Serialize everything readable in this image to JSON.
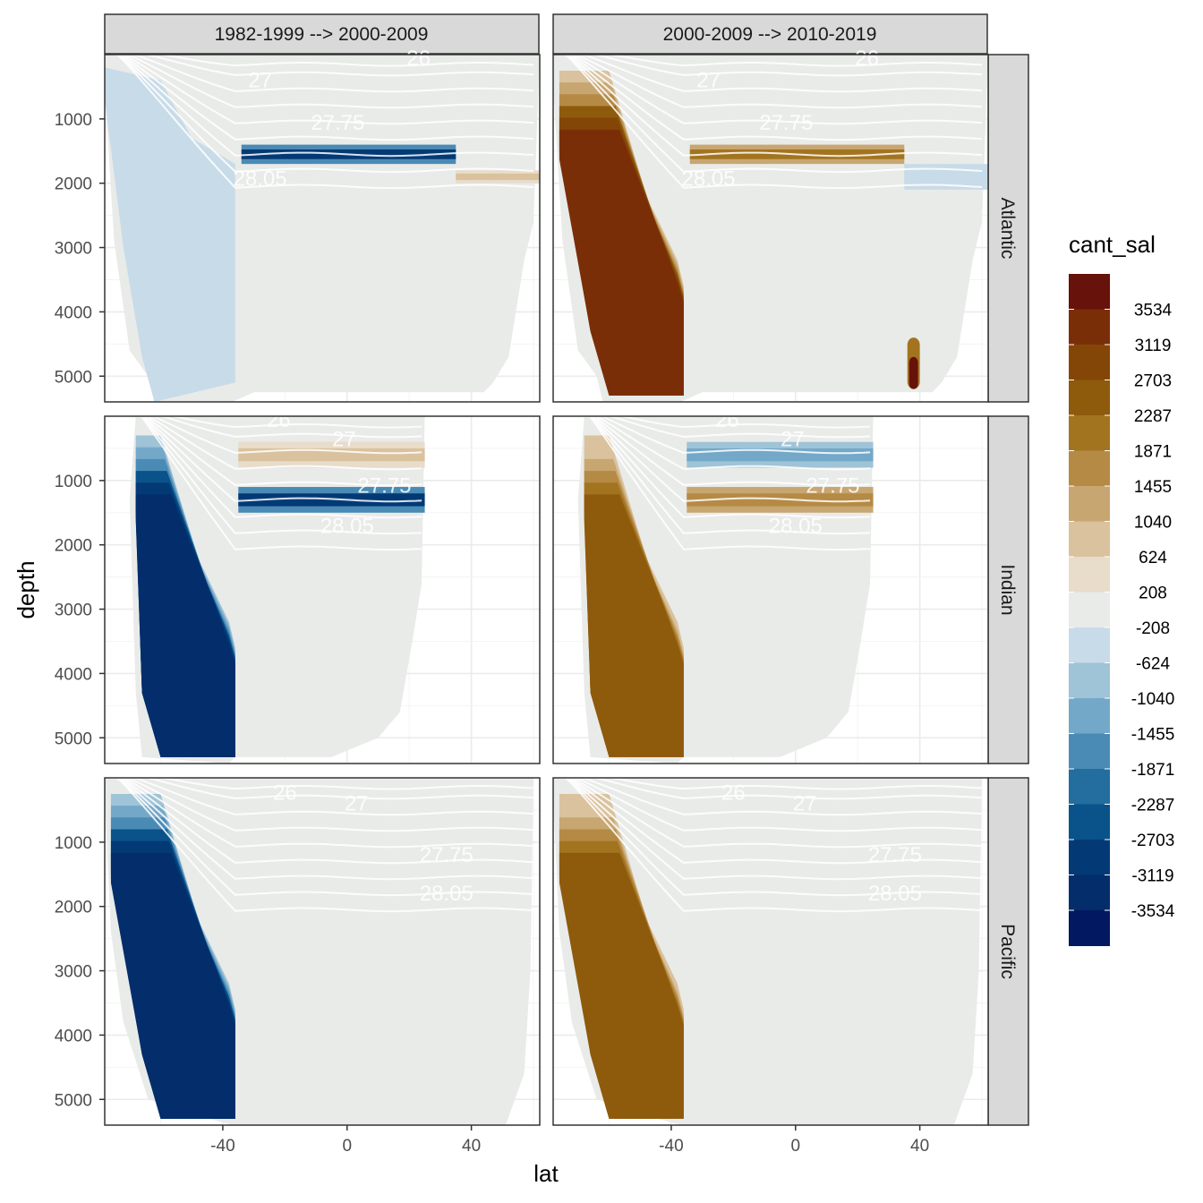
{
  "chart_data": {
    "type": "heatmap",
    "facet_columns": [
      "1982-1999 --> 2000-2009",
      "2000-2009 --> 2010-2019"
    ],
    "facet_rows": [
      "Atlantic",
      "Indian",
      "Pacific"
    ],
    "xlabel": "lat",
    "ylabel": "depth",
    "x_ticks": [
      -40,
      0,
      40
    ],
    "y_ticks": [
      1000,
      2000,
      3000,
      4000,
      5000
    ],
    "xlim": [
      -78,
      62
    ],
    "ylim": [
      5400,
      0
    ],
    "y_reversed": true,
    "grid": true,
    "legend": {
      "title": "cant_sal",
      "position": "right",
      "breaks": [
        3534,
        3119,
        2703,
        2287,
        1871,
        1455,
        1040,
        624,
        208,
        -208,
        -624,
        -1040,
        -1455,
        -1871,
        -2287,
        -2703,
        -3119,
        -3534
      ],
      "colors": [
        "#67120a",
        "#7a2e08",
        "#844606",
        "#8e5a0c",
        "#a3741f",
        "#b58a45",
        "#c8a671",
        "#d9c29d",
        "#e8dcca",
        "#e9ebe9",
        "#c8dbe8",
        "#9fc3d7",
        "#74a8c8",
        "#4a8bb6",
        "#236d9f",
        "#0a528a",
        "#033a76",
        "#032d6b",
        "#021860"
      ]
    },
    "isopycnal_labels": [
      "26",
      "27",
      "27.75",
      "28.05"
    ],
    "series": [
      {
        "period": "1982-1999 --> 2000-2009",
        "basin": "Atlantic",
        "features": [
          {
            "lat": [
              -78,
              -36
            ],
            "depth": [
              0,
              5400
            ],
            "value": -500
          },
          {
            "lat": [
              -34,
              35
            ],
            "depth": [
              1400,
              1700
            ],
            "value": -2800
          },
          {
            "lat": [
              35,
              62
            ],
            "depth": [
              1800,
              2000
            ],
            "value": 900
          }
        ]
      },
      {
        "period": "1982-1999 --> 2000-2009",
        "basin": "Indian",
        "features": [
          {
            "lat": [
              -68,
              -36
            ],
            "depth": [
              1300,
              5200
            ],
            "value": -3700
          },
          {
            "lat": [
              -35,
              25
            ],
            "depth": [
              400,
              800
            ],
            "value": 1000
          },
          {
            "lat": [
              -35,
              25
            ],
            "depth": [
              1100,
              1500
            ],
            "value": -2800
          }
        ]
      },
      {
        "period": "1982-1999 --> 2000-2009",
        "basin": "Pacific",
        "features": [
          {
            "lat": [
              -75,
              -36
            ],
            "depth": [
              1500,
              5200
            ],
            "value": -3700
          },
          {
            "lat": [
              -75,
              -36
            ],
            "depth": [
              600,
              3000
            ],
            "value": -1500
          }
        ]
      },
      {
        "period": "2000-2009 --> 2010-2019",
        "basin": "Atlantic",
        "features": [
          {
            "lat": [
              -34,
              35
            ],
            "depth": [
              1400,
              1700
            ],
            "value": 2200
          },
          {
            "lat": [
              35,
              62
            ],
            "depth": [
              1700,
              2100
            ],
            "value": -500
          },
          {
            "lat": [
              36,
              40
            ],
            "depth": [
              4400,
              5200
            ],
            "value": 3700
          }
        ]
      },
      {
        "period": "2000-2009 --> 2010-2019",
        "basin": "Indian",
        "features": [
          {
            "lat": [
              -68,
              -36
            ],
            "depth": [
              1300,
              5200
            ],
            "value": 2700
          },
          {
            "lat": [
              -35,
              25
            ],
            "depth": [
              400,
              800
            ],
            "value": -1400
          },
          {
            "lat": [
              -35,
              25
            ],
            "depth": [
              1100,
              1500
            ],
            "value": 1800
          }
        ]
      },
      {
        "period": "2000-2009 --> 2010-2019",
        "basin": "Pacific",
        "features": [
          {
            "lat": [
              -75,
              -36
            ],
            "depth": [
              1500,
              5200
            ],
            "value": 2700
          },
          {
            "lat": [
              -75,
              -36
            ],
            "depth": [
              600,
              3000
            ],
            "value": 1300
          }
        ]
      }
    ]
  }
}
